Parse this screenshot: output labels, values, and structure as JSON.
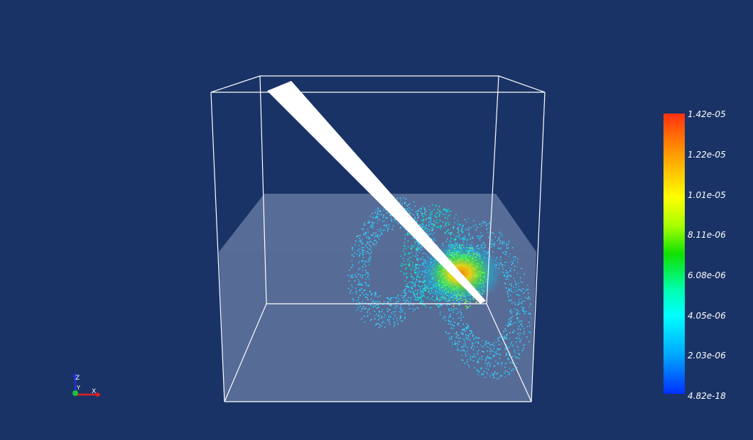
{
  "colorbar": {
    "labels": [
      "1.42e-05",
      "1.22e-05",
      "1.01e-05",
      "8.11e-06",
      "6.08e-06",
      "4.05e-06",
      "2.03e-06",
      "4.82e-18"
    ]
  },
  "axes": {
    "x": "X",
    "y": "Y",
    "z": "Z"
  },
  "colors": {
    "background": "#1a3366",
    "outline": "#ffffff",
    "slice": "#6b7fa6",
    "low": "#1ec8ff",
    "mid": "#00ff80",
    "high": "#ff9000"
  }
}
